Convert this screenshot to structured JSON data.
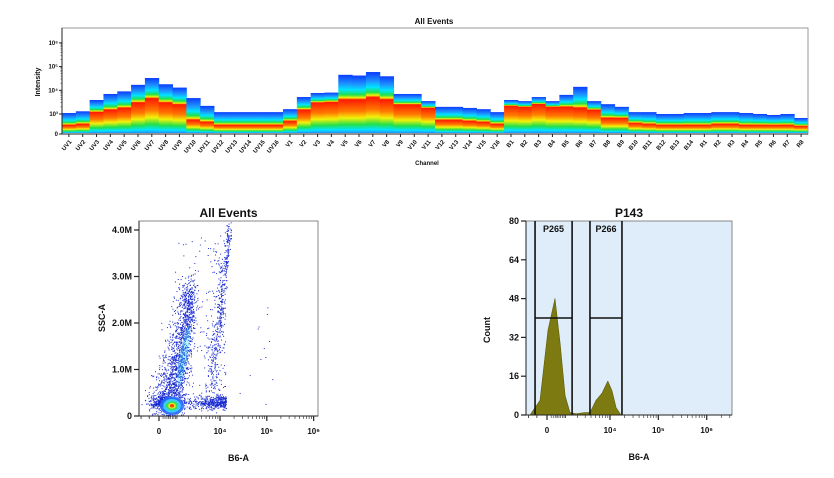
{
  "chart_data": [
    {
      "type": "heatmap",
      "title": "All Events",
      "xlabel": "Channel",
      "ylabel": "Intensity",
      "yscale": "biexponential",
      "ytick_labels": [
        "0",
        "10³",
        "10⁴",
        "10⁵",
        "10⁶"
      ],
      "ytick_values": [
        0,
        1000,
        10000,
        100000,
        1000000
      ],
      "colormap": [
        "#0a3cff",
        "#1e90ff",
        "#00e5ff",
        "#22e04a",
        "#f2f20a",
        "#ff7a00",
        "#ff1a00"
      ],
      "channels": [
        "UV1",
        "UV2",
        "UV3",
        "UV4",
        "UV5",
        "UV6",
        "UV7",
        "UV8",
        "UV9",
        "UV10",
        "UV11",
        "UV12",
        "UV13",
        "UV14",
        "UV15",
        "UV16",
        "V1",
        "V2",
        "V3",
        "V4",
        "V5",
        "V6",
        "V7",
        "V8",
        "V9",
        "V10",
        "V11",
        "V12",
        "V13",
        "V14",
        "V15",
        "V16",
        "B1",
        "B2",
        "B3",
        "B4",
        "B5",
        "B6",
        "B7",
        "B8",
        "B9",
        "B10",
        "B11",
        "B12",
        "B13",
        "B14",
        "R1",
        "R2",
        "R3",
        "R4",
        "R5",
        "R6",
        "R7",
        "R8"
      ],
      "max_intensity": [
        1100,
        1300,
        3900,
        7000,
        9000,
        17000,
        33000,
        18000,
        13000,
        4700,
        2200,
        1200,
        1200,
        1200,
        1200,
        1200,
        1600,
        5200,
        7700,
        8000,
        45000,
        42000,
        59000,
        39000,
        7000,
        7000,
        3500,
        2000,
        2000,
        1800,
        1600,
        1200,
        3900,
        3500,
        5200,
        3500,
        6400,
        14000,
        3500,
        2600,
        2000,
        1200,
        1200,
        1000,
        1000,
        1100,
        1100,
        1200,
        1200,
        1100,
        1000,
        950,
        1000,
        800
      ],
      "peak_intensity": [
        450,
        500,
        1200,
        1500,
        1800,
        3000,
        4500,
        3000,
        2500,
        700,
        600,
        450,
        450,
        450,
        450,
        450,
        650,
        1500,
        3000,
        3200,
        4000,
        4000,
        5000,
        4000,
        2500,
        2500,
        1800,
        700,
        700,
        650,
        600,
        500,
        2200,
        2000,
        2600,
        2000,
        2000,
        1800,
        1500,
        800,
        800,
        550,
        500,
        450,
        450,
        450,
        450,
        500,
        500,
        450,
        450,
        450,
        450,
        400
      ]
    },
    {
      "type": "scatter",
      "title": "All Events",
      "xlabel": "B6-A",
      "ylabel": "SSC-A",
      "xscale": "biexponential",
      "xtick_labels": [
        "0",
        "10⁴",
        "10⁵",
        "10⁶"
      ],
      "xtick_values": [
        0,
        10000,
        100000,
        1000000
      ],
      "ytick_labels": [
        "0",
        "1.0M",
        "2.0M",
        "3.0M",
        "4.0M"
      ],
      "ytick_values": [
        0,
        1000000,
        2000000,
        3000000,
        4000000
      ],
      "ylim": [
        0,
        4200000
      ],
      "colormap": "density (blue → cyan → green → yellow → red)"
    },
    {
      "type": "area",
      "title": "P143",
      "xlabel": "B6-A",
      "ylabel": "Count",
      "xscale": "biexponential",
      "xtick_labels": [
        "0",
        "10⁴",
        "10⁵",
        "10⁶"
      ],
      "xtick_values": [
        0,
        10000,
        100000,
        1000000
      ],
      "ytick_labels": [
        "0",
        "16",
        "32",
        "48",
        "64",
        "80"
      ],
      "ytick_values": [
        0,
        16,
        32,
        48,
        64,
        80
      ],
      "ylim": [
        0,
        80
      ],
      "fill_color": "#7d7a12",
      "background_color": "#deedf9",
      "points": [
        [
          -900,
          0
        ],
        [
          -340,
          6
        ],
        [
          48,
          35
        ],
        [
          390,
          48
        ],
        [
          660,
          30
        ],
        [
          970,
          8
        ],
        [
          1330,
          1
        ],
        [
          1870,
          0.5
        ],
        [
          2960,
          1
        ],
        [
          3800,
          1
        ],
        [
          5100,
          6
        ],
        [
          6800,
          9
        ],
        [
          9000,
          14
        ],
        [
          11000,
          10
        ],
        [
          13400,
          3
        ],
        [
          16900,
          0
        ]
      ],
      "gates": [
        {
          "name": "P265",
          "x_min": -600,
          "x_max": 1500,
          "count_level": 40
        },
        {
          "name": "P266",
          "x_min": 3800,
          "x_max": 17700,
          "count_level": 40
        }
      ]
    }
  ]
}
